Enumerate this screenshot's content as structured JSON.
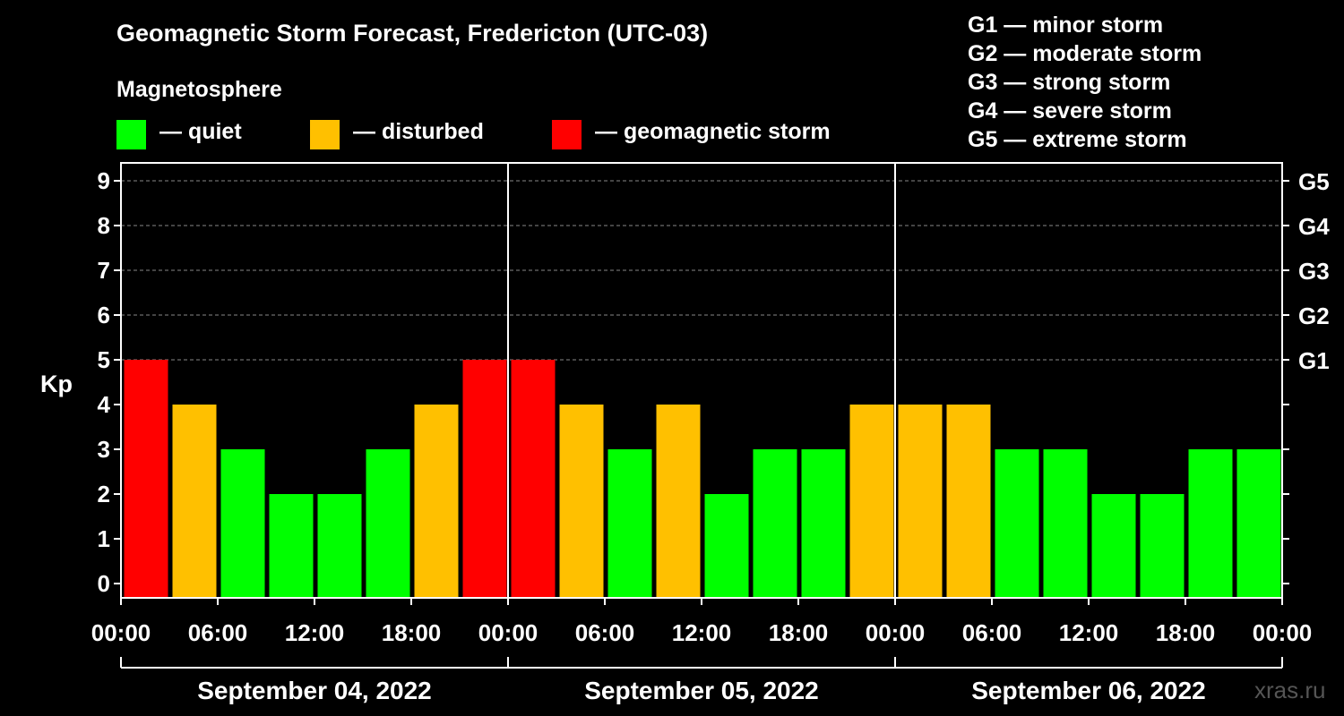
{
  "chart_data": {
    "type": "bar",
    "title": "Geomagnetic Storm Forecast, Fredericton (UTC-03)",
    "ylabel": "Kp",
    "ylim": [
      0,
      9
    ],
    "yticks": [
      "0",
      "1",
      "2",
      "3",
      "4",
      "5",
      "6",
      "7",
      "8",
      "9"
    ],
    "right_ticks": [
      {
        "kp": 5,
        "label": "G1"
      },
      {
        "kp": 6,
        "label": "G2"
      },
      {
        "kp": 7,
        "label": "G3"
      },
      {
        "kp": 8,
        "label": "G4"
      },
      {
        "kp": 9,
        "label": "G5"
      }
    ],
    "xtick_labels": [
      "00:00",
      "06:00",
      "12:00",
      "18:00",
      "00:00",
      "06:00",
      "12:00",
      "18:00",
      "00:00",
      "06:00",
      "12:00",
      "18:00",
      "00:00"
    ],
    "days": [
      "September 04, 2022",
      "September 05, 2022",
      "September 06, 2022"
    ],
    "bars_per_day": 8,
    "values": [
      5,
      4,
      3,
      2,
      2,
      3,
      4,
      5,
      5,
      4,
      3,
      4,
      2,
      3,
      3,
      4,
      4,
      4,
      3,
      3,
      2,
      2,
      3,
      3
    ],
    "thresholds": {
      "disturbed": 4,
      "storm": 5
    },
    "grid": true
  },
  "colors": {
    "quiet": "#00ff00",
    "disturbed": "#ffc000",
    "storm": "#ff0000",
    "background": "#000000",
    "foreground": "#ffffff"
  },
  "legend": {
    "heading": "Magnetosphere",
    "quiet": "— quiet",
    "disturbed": "— disturbed",
    "storm": "— geomagnetic storm"
  },
  "g_scale": [
    "G1 — minor storm",
    "G2 — moderate storm",
    "G3 — strong storm",
    "G4 — severe storm",
    "G5 — extreme storm"
  ],
  "watermark": "xras.ru"
}
